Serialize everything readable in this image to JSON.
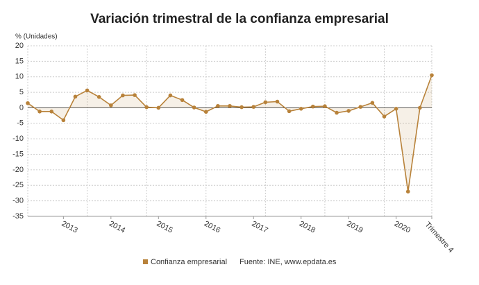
{
  "chart_data": {
    "type": "line",
    "title": "Variación trimestral de la confianza empresarial",
    "y_label": "% (Unidades)",
    "source": "Fuente: INE, www.epdata.es",
    "categories": [
      null,
      null,
      null,
      "2013",
      null,
      null,
      null,
      "2014",
      null,
      null,
      null,
      "2015",
      null,
      null,
      null,
      "2016",
      null,
      null,
      null,
      "2017",
      null,
      null,
      null,
      "2018",
      null,
      null,
      null,
      "2019",
      null,
      null,
      null,
      "2020",
      null,
      null,
      "Trimestre 4"
    ],
    "series": [
      {
        "name": "Confianza empresarial",
        "color": "#b8823a",
        "values": [
          1.5,
          -1.2,
          -1.2,
          -4,
          3.6,
          5.6,
          3.5,
          0.8,
          4,
          4.1,
          0.2,
          0,
          4,
          2.5,
          0.1,
          -1.3,
          0.6,
          0.6,
          0.2,
          0.3,
          1.8,
          2,
          -1.1,
          -0.3,
          0.4,
          0.5,
          -1.6,
          -1,
          0.3,
          1.6,
          -2.8,
          -0.3,
          -27,
          0,
          10.5
        ]
      }
    ],
    "ylim": [
      -35,
      20
    ],
    "yticks": [
      -35,
      -30,
      -25,
      -20,
      -15,
      -10,
      -5,
      0,
      5,
      10,
      15,
      20
    ],
    "grid": true
  }
}
